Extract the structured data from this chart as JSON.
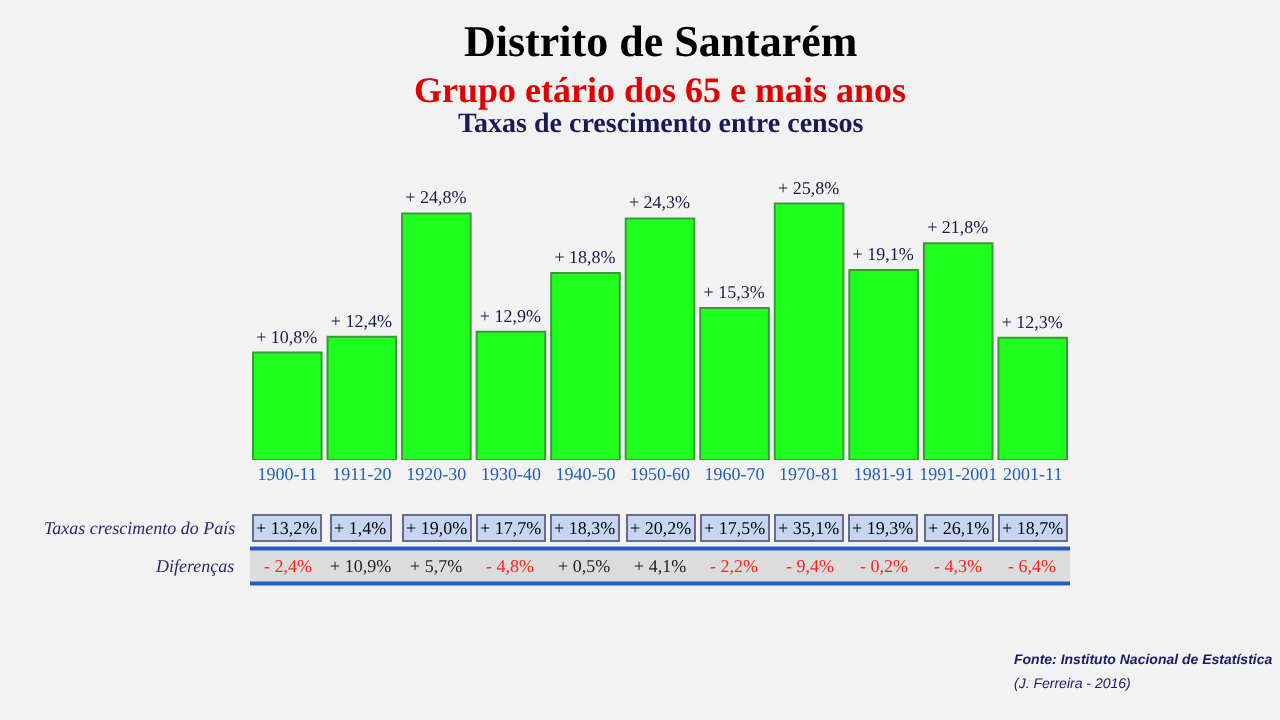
{
  "chart_data": {
    "type": "bar",
    "title": "Distrito de Santarém",
    "subtitle": "Grupo etário dos 65 e mais anos\nTaxas de crescimento entre censos",
    "categories": [
      "1900-11",
      "1911-20",
      "1920-30",
      "1930-40",
      "1940-50",
      "1950-60",
      "1960-70",
      "1970-81",
      "1981-91",
      "1991-2001",
      "2001-11"
    ],
    "values": [
      10.8,
      12.4,
      24.8,
      12.9,
      18.8,
      24.3,
      15.3,
      25.8,
      19.1,
      21.8,
      12.3
    ],
    "value_labels": [
      "+ 10,8%",
      "+ 12,4%",
      "+ 24,8%",
      "+ 12,9%",
      "+ 18,8%",
      "+ 24,3%",
      "+ 15,3%",
      "+ 25,8%",
      "+ 19,1%",
      "+ 21,8%",
      "+ 12,3%"
    ],
    "color": "#1eff1e",
    "grid": false,
    "annotations": [
      "Taxas crescimento do País",
      "+ 13,2%",
      "+ 1,4%",
      "+ 19,0%",
      "+ 17,7%",
      "+ 18,3%",
      "+ 20,2%",
      "+ 17,5%",
      "+ 35,1%",
      "+ 19,3%",
      "+ 26,1%",
      "+ 18,7%",
      "Diferenças",
      "- 2,4%",
      "+ 10,9%",
      "+ 5,7%",
      "- 4,8%",
      "+ 0,5%",
      "+ 4,1%",
      "- 2,2%",
      "- 9,4%",
      "- 0,2%",
      "- 4,3%",
      "- 6,4%",
      "Fonte: Instituto Nacional de Estatística",
      "(J. Ferreira - 2016)"
    ]
  }
}
